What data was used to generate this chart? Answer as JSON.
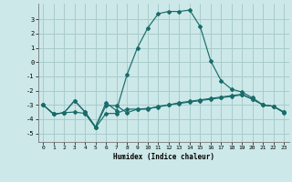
{
  "xlabel": "Humidex (Indice chaleur)",
  "bg_color": "#cce8e8",
  "grid_color": "#a8cccc",
  "line_color": "#1a6b6b",
  "xlim": [
    -0.5,
    23.5
  ],
  "ylim": [
    -5.6,
    4.1
  ],
  "yticks": [
    -5,
    -4,
    -3,
    -2,
    -1,
    0,
    1,
    2,
    3
  ],
  "xticks": [
    0,
    1,
    2,
    3,
    4,
    5,
    6,
    7,
    8,
    9,
    10,
    11,
    12,
    13,
    14,
    15,
    16,
    17,
    18,
    19,
    20,
    21,
    22,
    23
  ],
  "line1_x": [
    0,
    1,
    2,
    3,
    4,
    5,
    6,
    7,
    8,
    9,
    10,
    11,
    12,
    13,
    14,
    15,
    16,
    17,
    18,
    19,
    20,
    21,
    22,
    23
  ],
  "line1_y": [
    -3.0,
    -3.65,
    -3.55,
    -2.7,
    -3.5,
    -4.55,
    -3.05,
    -3.05,
    -3.55,
    -3.3,
    -3.3,
    -3.1,
    -3.0,
    -2.9,
    -2.8,
    -2.7,
    -2.6,
    -2.5,
    -2.4,
    -2.3,
    -2.6,
    -3.0,
    -3.1,
    -3.5
  ],
  "line2_x": [
    0,
    1,
    2,
    3,
    4,
    5,
    6,
    7,
    8,
    9,
    10,
    11,
    12,
    13,
    14,
    15,
    16,
    17,
    18,
    19,
    20,
    21,
    22,
    23
  ],
  "line2_y": [
    -3.0,
    -3.65,
    -3.55,
    -3.5,
    -3.6,
    -4.6,
    -3.6,
    -3.6,
    -3.3,
    -3.3,
    -3.25,
    -3.15,
    -3.0,
    -2.85,
    -2.75,
    -2.65,
    -2.55,
    -2.45,
    -2.35,
    -2.25,
    -2.6,
    -3.0,
    -3.1,
    -3.55
  ],
  "line3_x": [
    0,
    1,
    2,
    3,
    4,
    5,
    6,
    7,
    8,
    9,
    10,
    11,
    12,
    13,
    14,
    15,
    16,
    17,
    18,
    19,
    20,
    21,
    22,
    23
  ],
  "line3_y": [
    -3.0,
    -3.65,
    -3.55,
    -2.7,
    -3.5,
    -4.55,
    -2.85,
    -3.4,
    -0.9,
    1.0,
    2.4,
    3.4,
    3.55,
    3.55,
    3.65,
    2.5,
    0.1,
    -1.3,
    -1.9,
    -2.1,
    -2.5,
    -3.0,
    -3.1,
    -3.5
  ]
}
